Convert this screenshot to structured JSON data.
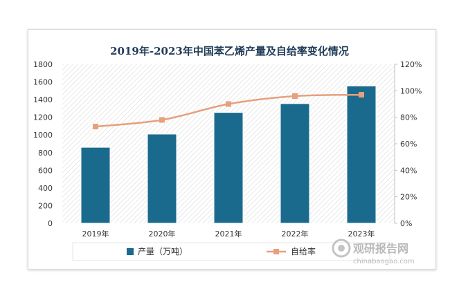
{
  "chart_data": {
    "type": "bar",
    "title": "2019年-2023年中国苯乙烯产量及自给率变化情况",
    "categories": [
      "2019年",
      "2020年",
      "2021年",
      "2022年",
      "2023年"
    ],
    "series": [
      {
        "name": "产量（万吨）",
        "type": "bar",
        "axis": "left",
        "values": [
          860,
          1010,
          1255,
          1355,
          1555
        ],
        "color": "#1a6a8e"
      },
      {
        "name": "自给率",
        "type": "line",
        "axis": "right",
        "values": [
          73,
          78,
          90,
          96,
          97
        ],
        "color": "#e6a07c"
      }
    ],
    "y_left": {
      "min": 0,
      "max": 1800,
      "ticks": [
        "0",
        "200",
        "400",
        "600",
        "800",
        "1000",
        "1200",
        "1400",
        "1600",
        "1800"
      ]
    },
    "y_right": {
      "min": 0,
      "max": 120,
      "ticks": [
        "0%",
        "20%",
        "40%",
        "60%",
        "80%",
        "100%",
        "120%"
      ]
    },
    "grid": false,
    "legend_position": "bottom"
  },
  "watermark": {
    "cn": "观研报告网",
    "en": "chinabaogao.com"
  }
}
